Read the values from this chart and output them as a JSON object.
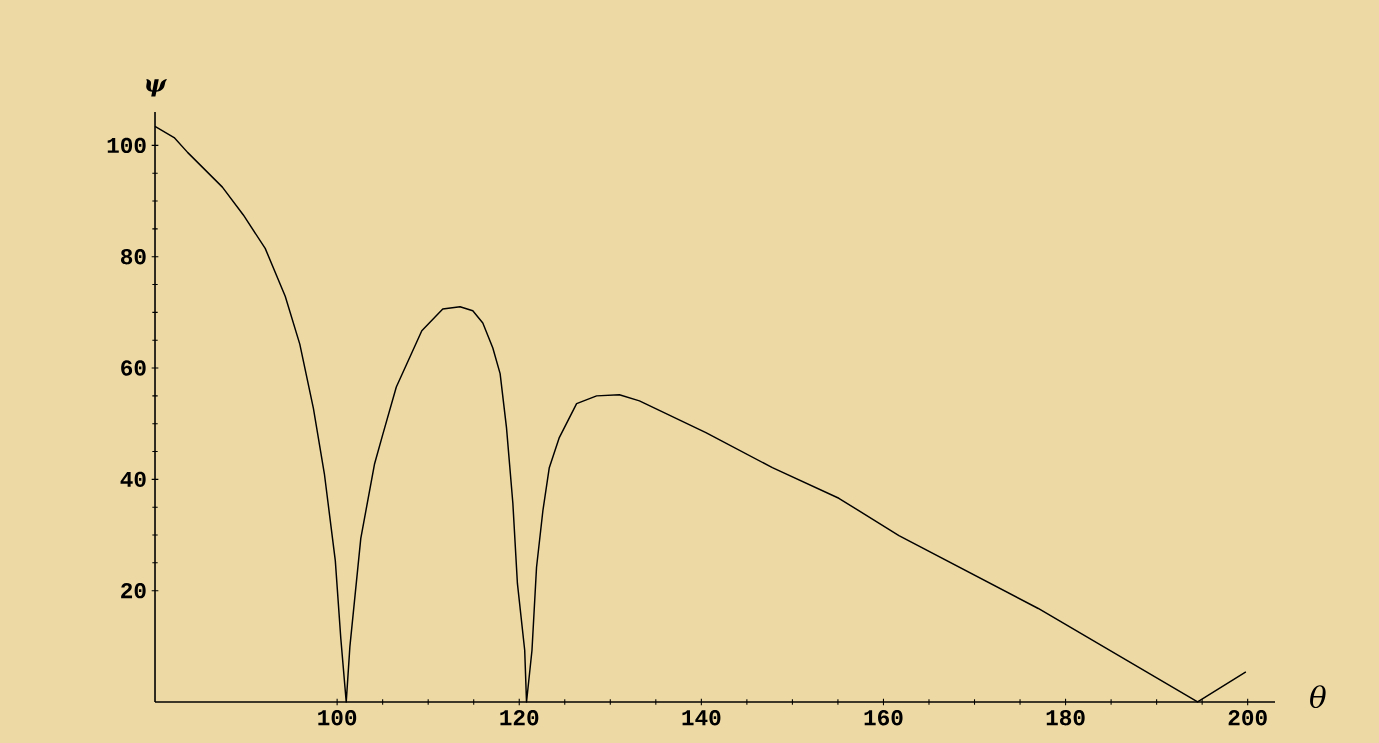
{
  "chart_data": {
    "type": "line",
    "xlabel": "θ",
    "ylabel": "ψ",
    "color": "#000000",
    "x": [
      80,
      82.1,
      83.6,
      87.4,
      89.7,
      92.1,
      94.3,
      95.9,
      97.4,
      98.6,
      99.8,
      100.4,
      101.0,
      101.4,
      102.6,
      104.1,
      105.0,
      106.5,
      109.3,
      111.6,
      113.5,
      114.9,
      116.0,
      117.1,
      117.9,
      118.6,
      119.3,
      119.8,
      120.6,
      120.8,
      121.4,
      121.9,
      122.6,
      123.3,
      124.4,
      126.3,
      128.5,
      131.0,
      133.2,
      140.5,
      147.8,
      155.1,
      161.7,
      177.0,
      194.5,
      199.8
    ],
    "values": [
      103.4,
      101.4,
      98.7,
      92.5,
      87.5,
      81.5,
      72.9,
      64.3,
      52.7,
      41.0,
      25.4,
      11.5,
      0,
      9.9,
      29.4,
      42.7,
      48.0,
      56.6,
      66.7,
      70.6,
      71.0,
      70.3,
      68.1,
      63.6,
      59.0,
      49.3,
      35.7,
      21.3,
      9.3,
      0,
      9.3,
      24.2,
      34.4,
      42.1,
      47.5,
      53.6,
      55.0,
      55.2,
      54.1,
      48.4,
      42.1,
      36.6,
      29.9,
      16.8,
      0,
      5.4
    ],
    "xlim": [
      80,
      203
    ],
    "ylim": [
      0,
      106
    ],
    "xticks": [
      100,
      120,
      140,
      160,
      180,
      200
    ],
    "yticks": [
      20,
      40,
      60,
      80,
      100
    ]
  }
}
